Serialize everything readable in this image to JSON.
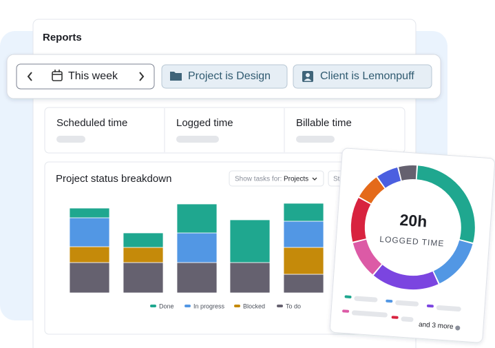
{
  "header": {
    "title": "Reports"
  },
  "filters": {
    "date_range": "This week",
    "project_filter": "Project is Design",
    "client_filter": "Client is Lemonpuff"
  },
  "metrics": [
    "Scheduled time",
    "Logged time",
    "Billable time"
  ],
  "chart_data": [
    {
      "type": "stacked_bar",
      "title": "Project status breakdown",
      "controls": {
        "show_tasks_label": "Show tasks for:",
        "show_tasks_value": "Projects",
        "second_control": "Sta"
      },
      "categories": [
        null,
        null,
        null,
        null,
        null
      ],
      "ylim": [
        0,
        130
      ],
      "series": [
        {
          "name": "To do",
          "color": "#65616f",
          "values": [
            44,
            44,
            44,
            44,
            27
          ]
        },
        {
          "name": "Blocked",
          "color": "#c58a0a",
          "values": [
            23,
            22,
            0,
            0,
            39
          ]
        },
        {
          "name": "In progress",
          "color": "#5297e4",
          "values": [
            42,
            0,
            43,
            0,
            38
          ]
        },
        {
          "name": "Done",
          "color": "#1fa78f",
          "values": [
            14,
            21,
            42,
            62,
            26
          ]
        }
      ],
      "legend_order": [
        "Done",
        "In progress",
        "Blocked",
        "To do"
      ]
    },
    {
      "type": "donut",
      "center_value": "20h",
      "center_label": "LOGGED TIME",
      "more_label": "and 3 more",
      "values": [
        28,
        14,
        18,
        10,
        12,
        7,
        6,
        5
      ],
      "colors": [
        "#1fa78f",
        "#5297e4",
        "#7b45e0",
        "#dc5aa6",
        "#d8233f",
        "#e46a1a",
        "#4b5fe0",
        "#65616f"
      ]
    }
  ]
}
